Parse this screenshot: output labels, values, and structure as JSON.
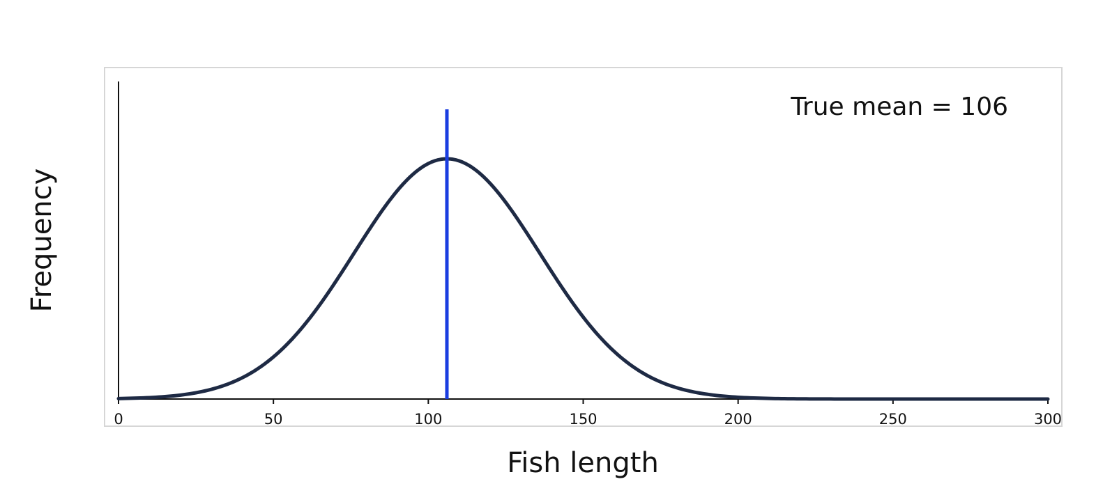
{
  "chart_data": {
    "type": "line",
    "xlabel": "Fish length",
    "ylabel": "Frequency",
    "xlim": [
      0,
      300
    ],
    "x_ticks": [
      0,
      50,
      100,
      150,
      200,
      250,
      300
    ],
    "x_tick_labels": [
      "0",
      "50",
      "100",
      "150",
      "200",
      "250",
      "300"
    ],
    "y_ticks_shown": false,
    "grid": false,
    "legend": "none",
    "series": [
      {
        "kind": "normal-density-curve",
        "mean": 106,
        "sd": 30,
        "color": "#1e2a44"
      }
    ],
    "reference_line": {
      "orientation": "vertical",
      "x": 106,
      "color": "#1a3de0"
    },
    "annotation": {
      "text": "True mean = 106",
      "position": "top-right"
    }
  }
}
